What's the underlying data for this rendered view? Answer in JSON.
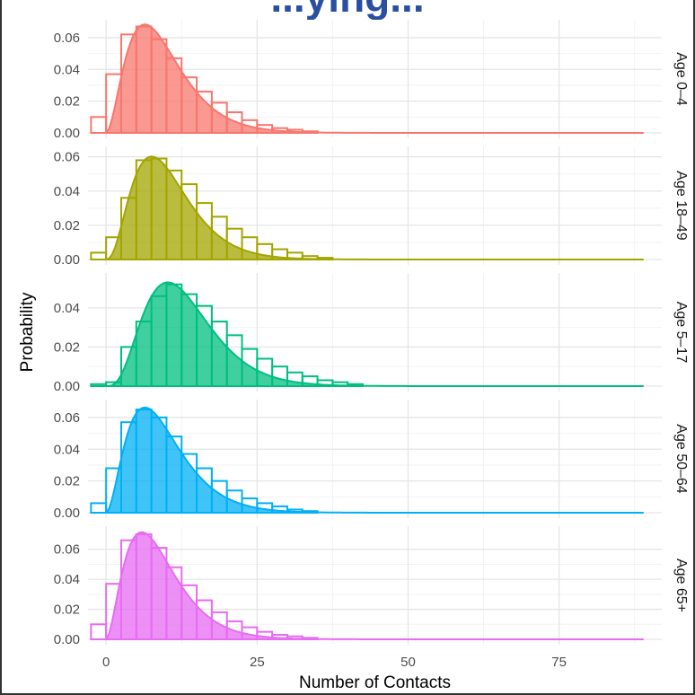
{
  "page": {
    "title": "...ying..."
  },
  "chart_data": {
    "type": "bar",
    "xlabel": "Number of Contacts",
    "ylabel": "Probability",
    "xlim": [
      -3,
      92
    ],
    "x_ticks": [
      0,
      25,
      50,
      75
    ],
    "x_tick_labels": [
      "0",
      "25",
      "50",
      "75"
    ],
    "bin_width": 2.5,
    "grid": true,
    "panels": [
      {
        "name": "Age 0–4",
        "color": "#F8766D",
        "ylim": [
          0,
          0.069
        ],
        "y_ticks": [
          "0.00",
          "0.02",
          "0.04",
          "0.06"
        ],
        "bins": [
          {
            "x": -1.25,
            "y": 0.01
          },
          {
            "x": 1.25,
            "y": 0.037
          },
          {
            "x": 3.75,
            "y": 0.062
          },
          {
            "x": 6.25,
            "y": 0.067
          },
          {
            "x": 8.75,
            "y": 0.059
          },
          {
            "x": 11.25,
            "y": 0.047
          },
          {
            "x": 13.75,
            "y": 0.035
          },
          {
            "x": 16.25,
            "y": 0.026
          },
          {
            "x": 18.75,
            "y": 0.019
          },
          {
            "x": 21.25,
            "y": 0.013
          },
          {
            "x": 23.75,
            "y": 0.008
          },
          {
            "x": 26.25,
            "y": 0.005
          },
          {
            "x": 28.75,
            "y": 0.003
          },
          {
            "x": 31.25,
            "y": 0.002
          },
          {
            "x": 33.75,
            "y": 0.001
          }
        ],
        "density": {
          "k": 3,
          "theta": 3.2
        }
      },
      {
        "name": "Age 18–49",
        "color": "#A3A500",
        "ylim": [
          0,
          0.064
        ],
        "y_ticks": [
          "0.00",
          "0.02",
          "0.04",
          "0.06"
        ],
        "bins": [
          {
            "x": -1.25,
            "y": 0.004
          },
          {
            "x": 1.25,
            "y": 0.013
          },
          {
            "x": 3.75,
            "y": 0.036
          },
          {
            "x": 6.25,
            "y": 0.058
          },
          {
            "x": 8.75,
            "y": 0.059
          },
          {
            "x": 11.25,
            "y": 0.052
          },
          {
            "x": 13.75,
            "y": 0.044
          },
          {
            "x": 16.25,
            "y": 0.033
          },
          {
            "x": 18.75,
            "y": 0.025
          },
          {
            "x": 21.25,
            "y": 0.018
          },
          {
            "x": 23.75,
            "y": 0.013
          },
          {
            "x": 26.25,
            "y": 0.009
          },
          {
            "x": 28.75,
            "y": 0.006
          },
          {
            "x": 31.25,
            "y": 0.004
          },
          {
            "x": 33.75,
            "y": 0.002
          },
          {
            "x": 36.25,
            "y": 0.001
          }
        ],
        "density": {
          "k": 3.6,
          "theta": 2.9
        }
      },
      {
        "name": "Age 5–17",
        "color": "#00BF7D",
        "ylim": [
          0,
          0.056
        ],
        "y_ticks": [
          "0.00",
          "0.02",
          "0.04"
        ],
        "bins": [
          {
            "x": -1.25,
            "y": 0.001
          },
          {
            "x": 1.25,
            "y": 0.002
          },
          {
            "x": 3.75,
            "y": 0.02
          },
          {
            "x": 6.25,
            "y": 0.033
          },
          {
            "x": 8.75,
            "y": 0.046
          },
          {
            "x": 11.25,
            "y": 0.052
          },
          {
            "x": 13.75,
            "y": 0.047
          },
          {
            "x": 16.25,
            "y": 0.041
          },
          {
            "x": 18.75,
            "y": 0.033
          },
          {
            "x": 21.25,
            "y": 0.026
          },
          {
            "x": 23.75,
            "y": 0.019
          },
          {
            "x": 26.25,
            "y": 0.014
          },
          {
            "x": 28.75,
            "y": 0.01
          },
          {
            "x": 31.25,
            "y": 0.007
          },
          {
            "x": 33.75,
            "y": 0.005
          },
          {
            "x": 36.25,
            "y": 0.003
          },
          {
            "x": 38.75,
            "y": 0.002
          },
          {
            "x": 41.25,
            "y": 0.001
          }
        ],
        "density": {
          "k": 4.4,
          "theta": 3.0
        }
      },
      {
        "name": "Age 50–64",
        "color": "#00B0F6",
        "ylim": [
          0,
          0.069
        ],
        "y_ticks": [
          "0.00",
          "0.02",
          "0.04",
          "0.06"
        ],
        "bins": [
          {
            "x": -1.25,
            "y": 0.006
          },
          {
            "x": 1.25,
            "y": 0.028
          },
          {
            "x": 3.75,
            "y": 0.057
          },
          {
            "x": 6.25,
            "y": 0.065
          },
          {
            "x": 8.75,
            "y": 0.06
          },
          {
            "x": 11.25,
            "y": 0.048
          },
          {
            "x": 13.75,
            "y": 0.037
          },
          {
            "x": 16.25,
            "y": 0.028
          },
          {
            "x": 18.75,
            "y": 0.02
          },
          {
            "x": 21.25,
            "y": 0.014
          },
          {
            "x": 23.75,
            "y": 0.009
          },
          {
            "x": 26.25,
            "y": 0.006
          },
          {
            "x": 28.75,
            "y": 0.004
          },
          {
            "x": 31.25,
            "y": 0.002
          },
          {
            "x": 33.75,
            "y": 0.001
          }
        ],
        "density": {
          "k": 3,
          "theta": 3.2
        }
      },
      {
        "name": "Age 65+",
        "color": "#E76BF3",
        "ylim": [
          0,
          0.073
        ],
        "y_ticks": [
          "0.00",
          "0.02",
          "0.04",
          "0.06"
        ],
        "bins": [
          {
            "x": -1.25,
            "y": 0.01
          },
          {
            "x": 1.25,
            "y": 0.037
          },
          {
            "x": 3.75,
            "y": 0.066
          },
          {
            "x": 6.25,
            "y": 0.07
          },
          {
            "x": 8.75,
            "y": 0.061
          },
          {
            "x": 11.25,
            "y": 0.048
          },
          {
            "x": 13.75,
            "y": 0.036
          },
          {
            "x": 16.25,
            "y": 0.026
          },
          {
            "x": 18.75,
            "y": 0.018
          },
          {
            "x": 21.25,
            "y": 0.012
          },
          {
            "x": 23.75,
            "y": 0.008
          },
          {
            "x": 26.25,
            "y": 0.005
          },
          {
            "x": 28.75,
            "y": 0.003
          },
          {
            "x": 31.25,
            "y": 0.002
          },
          {
            "x": 33.75,
            "y": 0.001
          }
        ],
        "density": {
          "k": 2.9,
          "theta": 3.1
        }
      }
    ]
  }
}
